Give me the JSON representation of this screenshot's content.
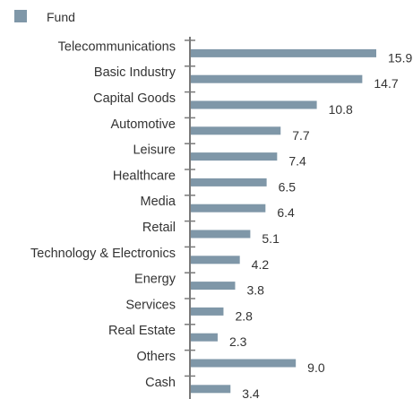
{
  "chart_data": {
    "type": "bar",
    "orientation": "horizontal",
    "title": "",
    "xlabel": "",
    "ylabel": "",
    "legend_position": "top-left",
    "grid": false,
    "xlim": [
      0,
      15.9
    ],
    "categories": [
      "Telecommunications",
      "Basic Industry",
      "Capital Goods",
      "Automotive",
      "Leisure",
      "Healthcare",
      "Media",
      "Retail",
      "Technology & Electronics",
      "Energy",
      "Services",
      "Real Estate",
      "Others",
      "Cash"
    ],
    "series": [
      {
        "name": "Fund",
        "color": "#7f97a8",
        "values": [
          15.9,
          14.7,
          10.8,
          7.7,
          7.4,
          6.5,
          6.4,
          5.1,
          4.2,
          3.8,
          2.8,
          2.3,
          9.0,
          3.4
        ],
        "value_labels": [
          "15.9",
          "14.7",
          "10.8",
          "7.7",
          "7.4",
          "6.5",
          "6.4",
          "5.1",
          "4.2",
          "3.8",
          "2.8",
          "2.3",
          "9.0",
          "3.4"
        ]
      }
    ],
    "axis_color": "#7a7a7a"
  }
}
